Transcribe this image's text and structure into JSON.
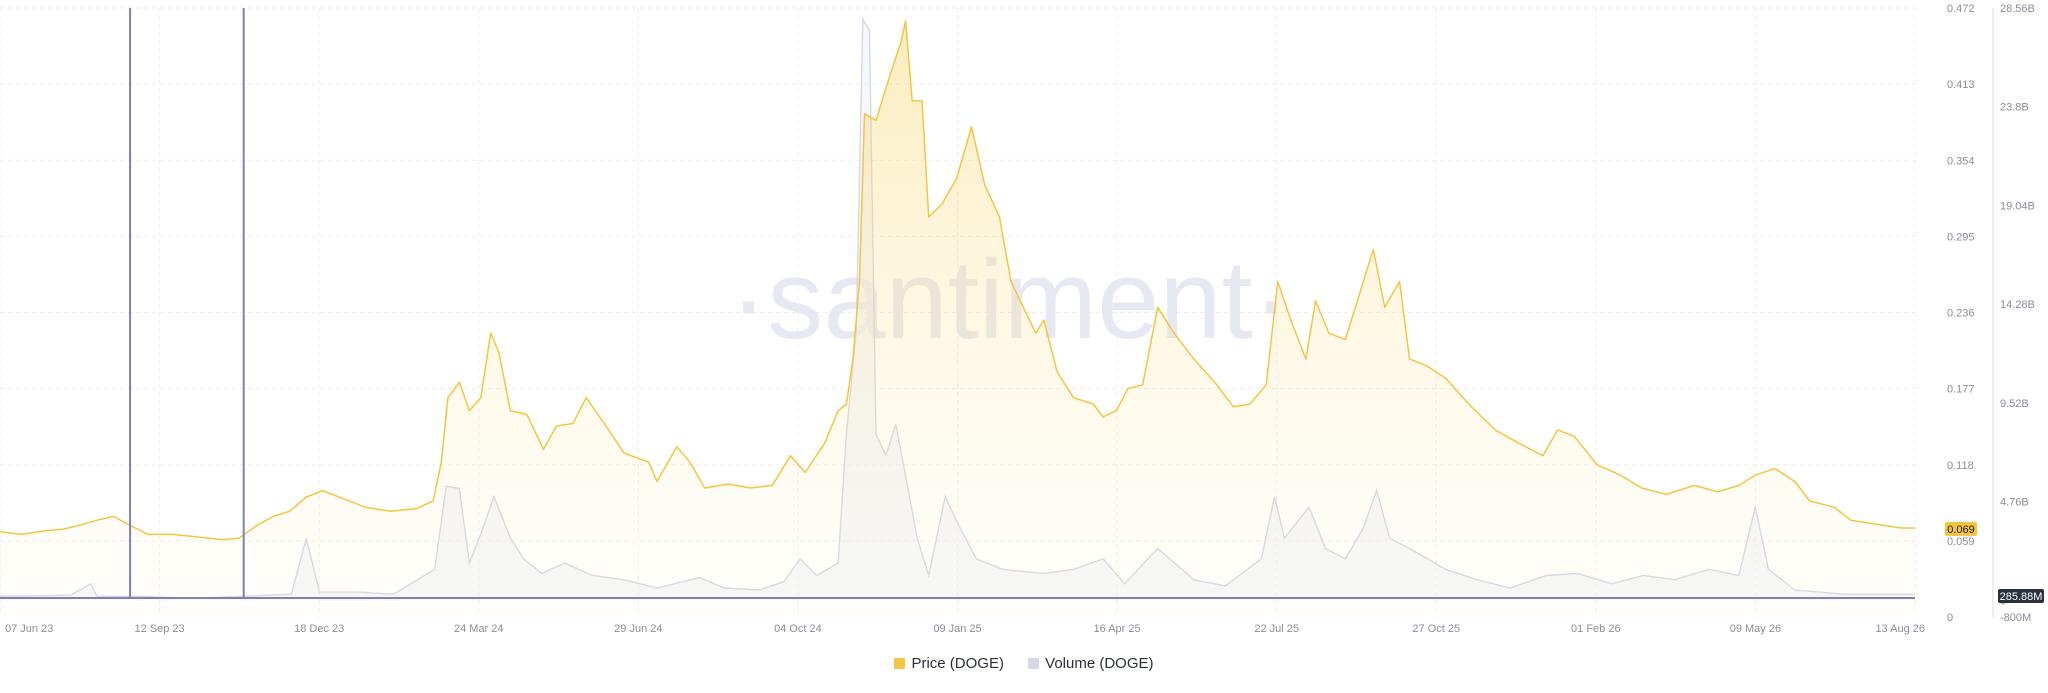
{
  "watermark": "·santiment·",
  "chart_data": {
    "type": "line",
    "x_ticks": [
      "07 Jun 23",
      "12 Sep 23",
      "18 Dec 23",
      "24 Mar 24",
      "29 Jun 24",
      "04 Oct 24",
      "09 Jan 25",
      "16 Apr 25",
      "22 Jul 25",
      "27 Oct 25",
      "01 Feb 26",
      "09 May 26",
      "13 Aug 26"
    ],
    "y_left_ticks": [
      "0",
      "0.059",
      "0.118",
      "0.177",
      "0.236",
      "0.295",
      "0.354",
      "0.413",
      "0.472"
    ],
    "y_right_ticks": [
      "-800M",
      "0",
      "4.76B",
      "9.52B",
      "14.28B",
      "19.04B",
      "23.8B",
      "28.56B"
    ],
    "price_range": [
      0,
      0.472
    ],
    "volume_range": [
      -800000000,
      28560000000
    ],
    "grid": true,
    "legend_position": "bottom-center",
    "x_range": [
      "2023-06-07",
      "2026-08-13"
    ],
    "series": [
      {
        "name": "Price (DOGE)",
        "color": "#f3c543",
        "points": [
          [
            "2023-06-07",
            0.066
          ],
          [
            "2023-06-20",
            0.064
          ],
          [
            "2023-07-05",
            0.067
          ],
          [
            "2023-07-15",
            0.068
          ],
          [
            "2023-07-25",
            0.071
          ],
          [
            "2023-08-05",
            0.075
          ],
          [
            "2023-08-15",
            0.078
          ],
          [
            "2023-08-25",
            0.071
          ],
          [
            "2023-09-05",
            0.064
          ],
          [
            "2023-09-20",
            0.064
          ],
          [
            "2023-10-05",
            0.062
          ],
          [
            "2023-10-20",
            0.06
          ],
          [
            "2023-10-30",
            0.061
          ],
          [
            "2023-11-10",
            0.071
          ],
          [
            "2023-11-20",
            0.078
          ],
          [
            "2023-11-30",
            0.082
          ],
          [
            "2023-12-10",
            0.093
          ],
          [
            "2023-12-20",
            0.098
          ],
          [
            "2024-01-01",
            0.092
          ],
          [
            "2024-01-15",
            0.085
          ],
          [
            "2024-01-30",
            0.082
          ],
          [
            "2024-02-15",
            0.084
          ],
          [
            "2024-02-25",
            0.09
          ],
          [
            "2024-03-01",
            0.12
          ],
          [
            "2024-03-05",
            0.17
          ],
          [
            "2024-03-12",
            0.182
          ],
          [
            "2024-03-18",
            0.16
          ],
          [
            "2024-03-25",
            0.17
          ],
          [
            "2024-03-31",
            0.22
          ],
          [
            "2024-04-05",
            0.205
          ],
          [
            "2024-04-12",
            0.16
          ],
          [
            "2024-04-22",
            0.157
          ],
          [
            "2024-05-02",
            0.13
          ],
          [
            "2024-05-10",
            0.148
          ],
          [
            "2024-05-20",
            0.15
          ],
          [
            "2024-05-28",
            0.17
          ],
          [
            "2024-06-08",
            0.15
          ],
          [
            "2024-06-20",
            0.127
          ],
          [
            "2024-07-05",
            0.12
          ],
          [
            "2024-07-10",
            0.105
          ],
          [
            "2024-07-22",
            0.132
          ],
          [
            "2024-07-30",
            0.12
          ],
          [
            "2024-08-08",
            0.1
          ],
          [
            "2024-08-22",
            0.103
          ],
          [
            "2024-09-05",
            0.1
          ],
          [
            "2024-09-18",
            0.102
          ],
          [
            "2024-09-29",
            0.125
          ],
          [
            "2024-10-08",
            0.112
          ],
          [
            "2024-10-20",
            0.135
          ],
          [
            "2024-10-28",
            0.16
          ],
          [
            "2024-11-02",
            0.165
          ],
          [
            "2024-11-06",
            0.2
          ],
          [
            "2024-11-10",
            0.26
          ],
          [
            "2024-11-13",
            0.39
          ],
          [
            "2024-11-20",
            0.385
          ],
          [
            "2024-11-28",
            0.418
          ],
          [
            "2024-12-05",
            0.445
          ],
          [
            "2024-12-08",
            0.462
          ],
          [
            "2024-12-12",
            0.4
          ],
          [
            "2024-12-18",
            0.4
          ],
          [
            "2024-12-22",
            0.31
          ],
          [
            "2024-12-30",
            0.32
          ],
          [
            "2025-01-08",
            0.34
          ],
          [
            "2025-01-17",
            0.38
          ],
          [
            "2025-01-25",
            0.335
          ],
          [
            "2025-02-03",
            0.31
          ],
          [
            "2025-02-10",
            0.26
          ],
          [
            "2025-02-25",
            0.22
          ],
          [
            "2025-03-02",
            0.23
          ],
          [
            "2025-03-10",
            0.19
          ],
          [
            "2025-03-20",
            0.17
          ],
          [
            "2025-04-01",
            0.165
          ],
          [
            "2025-04-07",
            0.155
          ],
          [
            "2025-04-15",
            0.16
          ],
          [
            "2025-04-22",
            0.177
          ],
          [
            "2025-05-01",
            0.18
          ],
          [
            "2025-05-10",
            0.24
          ],
          [
            "2025-05-20",
            0.22
          ],
          [
            "2025-06-01",
            0.2
          ],
          [
            "2025-06-15",
            0.18
          ],
          [
            "2025-06-25",
            0.163
          ],
          [
            "2025-07-05",
            0.165
          ],
          [
            "2025-07-15",
            0.18
          ],
          [
            "2025-07-22",
            0.26
          ],
          [
            "2025-07-30",
            0.23
          ],
          [
            "2025-08-08",
            0.2
          ],
          [
            "2025-08-14",
            0.245
          ],
          [
            "2025-08-22",
            0.22
          ],
          [
            "2025-09-01",
            0.215
          ],
          [
            "2025-09-12",
            0.26
          ],
          [
            "2025-09-18",
            0.285
          ],
          [
            "2025-09-25",
            0.24
          ],
          [
            "2025-10-04",
            0.26
          ],
          [
            "2025-10-10",
            0.2
          ],
          [
            "2025-10-20",
            0.195
          ],
          [
            "2025-11-01",
            0.185
          ],
          [
            "2025-11-15",
            0.165
          ],
          [
            "2025-12-01",
            0.145
          ],
          [
            "2025-12-15",
            0.135
          ],
          [
            "2025-12-30",
            0.125
          ],
          [
            "2026-01-08",
            0.145
          ],
          [
            "2026-01-18",
            0.14
          ],
          [
            "2026-02-01",
            0.118
          ],
          [
            "2026-02-15",
            0.11
          ],
          [
            "2026-02-28",
            0.1
          ],
          [
            "2026-03-15",
            0.095
          ],
          [
            "2026-04-01",
            0.102
          ],
          [
            "2026-04-15",
            0.097
          ],
          [
            "2026-04-28",
            0.102
          ],
          [
            "2026-05-08",
            0.11
          ],
          [
            "2026-05-20",
            0.115
          ],
          [
            "2026-06-01",
            0.105
          ],
          [
            "2026-06-10",
            0.09
          ],
          [
            "2026-06-25",
            0.085
          ],
          [
            "2026-07-05",
            0.075
          ],
          [
            "2026-07-20",
            0.072
          ],
          [
            "2026-08-05",
            0.069
          ],
          [
            "2026-08-13",
            0.069
          ]
        ]
      },
      {
        "name": "Volume (DOGE)",
        "color": "#d5d8e6",
        "points": [
          [
            "2023-06-07",
            0.2
          ],
          [
            "2023-07-20",
            0.25
          ],
          [
            "2023-08-01",
            0.8
          ],
          [
            "2023-08-05",
            0.2
          ],
          [
            "2023-09-01",
            0.2
          ],
          [
            "2023-10-01",
            0.1
          ],
          [
            "2023-11-01",
            0.2
          ],
          [
            "2023-12-01",
            0.3
          ],
          [
            "2023-12-10",
            3.0
          ],
          [
            "2023-12-18",
            0.4
          ],
          [
            "2024-01-10",
            0.4
          ],
          [
            "2024-02-01",
            0.3
          ],
          [
            "2024-02-26",
            1.5
          ],
          [
            "2024-03-04",
            5.5
          ],
          [
            "2024-03-12",
            5.4
          ],
          [
            "2024-03-18",
            1.8
          ],
          [
            "2024-03-25",
            3.2
          ],
          [
            "2024-04-02",
            5.0
          ],
          [
            "2024-04-12",
            3.0
          ],
          [
            "2024-04-20",
            2.0
          ],
          [
            "2024-05-01",
            1.3
          ],
          [
            "2024-05-15",
            1.8
          ],
          [
            "2024-06-01",
            1.2
          ],
          [
            "2024-06-20",
            1.0
          ],
          [
            "2024-07-10",
            0.6
          ],
          [
            "2024-08-05",
            1.1
          ],
          [
            "2024-08-20",
            0.6
          ],
          [
            "2024-09-10",
            0.5
          ],
          [
            "2024-09-25",
            0.9
          ],
          [
            "2024-10-05",
            2.0
          ],
          [
            "2024-10-15",
            1.2
          ],
          [
            "2024-10-28",
            1.8
          ],
          [
            "2024-11-02",
            8.0
          ],
          [
            "2024-11-08",
            13.0
          ],
          [
            "2024-11-12",
            28.0
          ],
          [
            "2024-11-16",
            27.5
          ],
          [
            "2024-11-20",
            8.0
          ],
          [
            "2024-11-26",
            7.0
          ],
          [
            "2024-12-02",
            8.5
          ],
          [
            "2024-12-08",
            6.0
          ],
          [
            "2024-12-15",
            3.0
          ],
          [
            "2024-12-22",
            1.2
          ],
          [
            "2025-01-01",
            5.0
          ],
          [
            "2025-01-10",
            3.5
          ],
          [
            "2025-01-20",
            2.0
          ],
          [
            "2025-02-05",
            1.5
          ],
          [
            "2025-03-01",
            1.3
          ],
          [
            "2025-03-20",
            1.5
          ],
          [
            "2025-04-07",
            2.0
          ],
          [
            "2025-04-20",
            0.8
          ],
          [
            "2025-05-10",
            2.5
          ],
          [
            "2025-06-01",
            1.0
          ],
          [
            "2025-06-20",
            0.7
          ],
          [
            "2025-07-12",
            2.0
          ],
          [
            "2025-07-20",
            5.0
          ],
          [
            "2025-07-26",
            3.0
          ],
          [
            "2025-08-10",
            4.5
          ],
          [
            "2025-08-20",
            2.5
          ],
          [
            "2025-09-01",
            2.0
          ],
          [
            "2025-09-12",
            3.5
          ],
          [
            "2025-09-20",
            5.3
          ],
          [
            "2025-09-28",
            3.0
          ],
          [
            "2025-10-10",
            2.5
          ],
          [
            "2025-11-01",
            1.5
          ],
          [
            "2025-11-20",
            1.0
          ],
          [
            "2025-12-10",
            0.6
          ],
          [
            "2026-01-01",
            1.2
          ],
          [
            "2026-01-20",
            1.3
          ],
          [
            "2026-02-10",
            0.8
          ],
          [
            "2026-03-01",
            1.2
          ],
          [
            "2026-03-20",
            1.0
          ],
          [
            "2026-04-10",
            1.5
          ],
          [
            "2026-04-28",
            1.2
          ],
          [
            "2026-05-08",
            4.5
          ],
          [
            "2026-05-16",
            1.5
          ],
          [
            "2026-06-01",
            0.5
          ],
          [
            "2026-07-01",
            0.3
          ],
          [
            "2026-08-13",
            0.3
          ]
        ]
      }
    ],
    "markers": [
      "2023-08-25",
      "2023-11-02"
    ],
    "price_badge": "0.069",
    "volume_badge": "285.88M"
  },
  "legend": [
    {
      "label": "Price (DOGE)",
      "color": "#f3c543"
    },
    {
      "label": "Volume (DOGE)",
      "color": "#d5d8e6"
    }
  ]
}
